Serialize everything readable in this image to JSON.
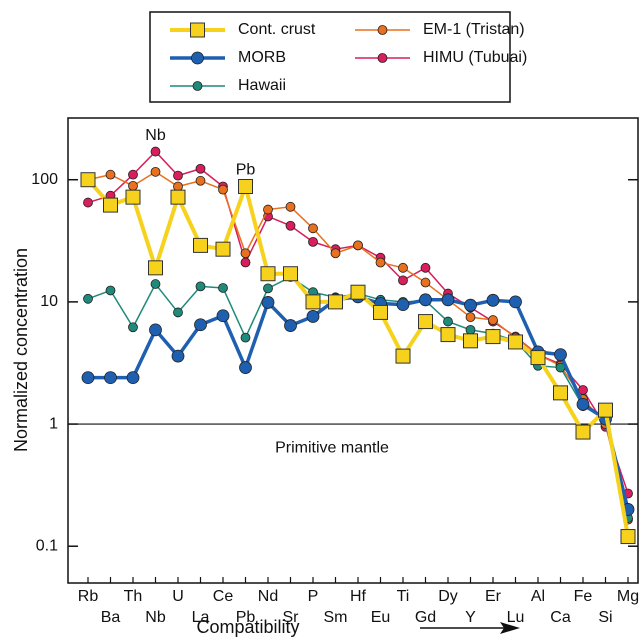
{
  "chart_data": {
    "type": "line",
    "y_label": "Normalized concentration",
    "x_label": "Compatibility",
    "log_y": true,
    "ylim": [
      0.05,
      320
    ],
    "yticks": [
      0.1,
      1,
      10,
      100
    ],
    "hline": 1,
    "hline_label": "Primitive mantle",
    "annotations": [
      "Nb",
      "Pb"
    ],
    "categories": [
      "Rb",
      "Ba",
      "Th",
      "Nb",
      "U",
      "La",
      "Ce",
      "Pb",
      "Nd",
      "Sr",
      "P",
      "Sm",
      "Hf",
      "Eu",
      "Ti",
      "Gd",
      "Dy",
      "Y",
      "Er",
      "Lu",
      "Al",
      "Ca",
      "Fe",
      "Si",
      "Mg"
    ],
    "series": [
      {
        "name": "Cont. crust",
        "color": "#f6d21c",
        "marker": "square",
        "line_width": 4,
        "values": [
          100,
          62,
          72,
          19,
          72,
          29,
          27,
          88,
          17,
          17,
          10,
          10,
          12,
          8.2,
          3.6,
          6.9,
          5.4,
          4.8,
          5.2,
          4.7,
          3.5,
          1.8,
          0.86,
          1.3,
          0.12
        ]
      },
      {
        "name": "MORB",
        "color": "#1f5fb0",
        "marker": "circle",
        "line_width": 3.5,
        "values": [
          2.4,
          2.4,
          2.4,
          5.9,
          3.6,
          6.5,
          7.7,
          2.9,
          9.9,
          6.4,
          7.6,
          10.4,
          11,
          9.7,
          9.5,
          10.4,
          10.4,
          9.4,
          10.3,
          10,
          3.9,
          3.7,
          1.45,
          1.1,
          0.2
        ]
      },
      {
        "name": "Hawaii",
        "color": "#1f8a7a",
        "marker": "circle",
        "line_width": 1.5,
        "values": [
          10.6,
          12.4,
          6.2,
          14,
          8.2,
          13.4,
          13,
          5.1,
          12.9,
          16,
          12,
          10.9,
          11.7,
          10.4,
          10,
          10.2,
          6.9,
          5.9,
          5.5,
          4.8,
          3,
          2.9,
          1.4,
          1.1,
          0.17
        ]
      },
      {
        "name": "EM-1 (Tristan)",
        "color": "#e8701e",
        "marker": "circle",
        "line_width": 1.5,
        "values": [
          100,
          110,
          89,
          116,
          88,
          98,
          83,
          25,
          57,
          60,
          40,
          25,
          29,
          21,
          19,
          14.4,
          10.4,
          7.5,
          7.1,
          5.1,
          3.7,
          3,
          1.6,
          1,
          0.165
        ]
      },
      {
        "name": "HIMU (Tubuai)",
        "color": "#d81e5b",
        "marker": "circle",
        "line_width": 1.5,
        "values": [
          65,
          74,
          110,
          170,
          108,
          123,
          88,
          21,
          50,
          42,
          31,
          27,
          29,
          23,
          15,
          19,
          11.7,
          9,
          6.9,
          5.2,
          3.7,
          3.1,
          1.9,
          0.95,
          0.27
        ]
      }
    ]
  }
}
